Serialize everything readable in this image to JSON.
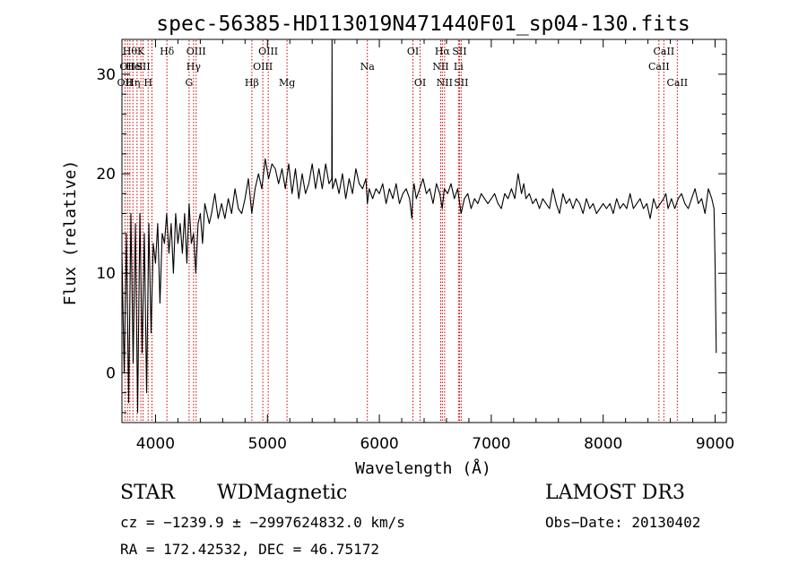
{
  "chart_data": {
    "type": "line",
    "title": "spec-56385-HD113019N471440F01_sp04-130.fits",
    "xlabel": "Wavelength (Å)",
    "ylabel": "Flux (relative)",
    "xlim": [
      3700,
      9100
    ],
    "ylim": [
      -5,
      33.5
    ],
    "xticks": [
      {
        "value": 4000,
        "label": "4000"
      },
      {
        "value": 5000,
        "label": "5000"
      },
      {
        "value": 6000,
        "label": "6000"
      },
      {
        "value": 7000,
        "label": "7000"
      },
      {
        "value": 8000,
        "label": "8000"
      },
      {
        "value": 9000,
        "label": "9000"
      }
    ],
    "yticks": [
      {
        "value": 0,
        "label": "0"
      },
      {
        "value": 10,
        "label": "10"
      },
      {
        "value": 20,
        "label": "20"
      },
      {
        "value": 30,
        "label": "30"
      }
    ],
    "series": [
      {
        "name": "flux",
        "color": "#000000",
        "x": [
          3700,
          3720,
          3740,
          3760,
          3780,
          3800,
          3820,
          3840,
          3860,
          3880,
          3900,
          3920,
          3940,
          3960,
          3980,
          4000,
          4020,
          4040,
          4060,
          4080,
          4100,
          4120,
          4140,
          4160,
          4180,
          4200,
          4220,
          4240,
          4260,
          4280,
          4300,
          4320,
          4340,
          4360,
          4380,
          4400,
          4420,
          4440,
          4460,
          4480,
          4500,
          4530,
          4560,
          4590,
          4620,
          4650,
          4680,
          4710,
          4740,
          4770,
          4800,
          4830,
          4860,
          4890,
          4920,
          4950,
          4980,
          5010,
          5040,
          5070,
          5100,
          5130,
          5160,
          5190,
          5220,
          5250,
          5280,
          5310,
          5340,
          5370,
          5400,
          5430,
          5460,
          5490,
          5520,
          5550,
          5575,
          5577,
          5579,
          5582,
          5610,
          5640,
          5670,
          5700,
          5730,
          5760,
          5790,
          5820,
          5850,
          5880,
          5893,
          5910,
          5940,
          5970,
          6000,
          6030,
          6060,
          6090,
          6120,
          6150,
          6180,
          6210,
          6240,
          6270,
          6290,
          6300,
          6310,
          6330,
          6360,
          6390,
          6420,
          6450,
          6480,
          6510,
          6540,
          6562,
          6580,
          6610,
          6640,
          6670,
          6700,
          6730,
          6760,
          6790,
          6820,
          6850,
          6880,
          6910,
          6940,
          6970,
          7000,
          7030,
          7060,
          7090,
          7120,
          7150,
          7180,
          7210,
          7240,
          7270,
          7290,
          7310,
          7340,
          7370,
          7400,
          7430,
          7460,
          7490,
          7520,
          7550,
          7580,
          7610,
          7640,
          7670,
          7700,
          7730,
          7760,
          7790,
          7820,
          7850,
          7880,
          7910,
          7940,
          7970,
          8000,
          8030,
          8060,
          8090,
          8120,
          8150,
          8180,
          8210,
          8240,
          8270,
          8300,
          8330,
          8360,
          8390,
          8420,
          8450,
          8480,
          8510,
          8540,
          8560,
          8580,
          8610,
          8640,
          8670,
          8700,
          8730,
          8760,
          8790,
          8820,
          8850,
          8880,
          8910,
          8940,
          8970,
          8990,
          9000,
          9010
        ],
        "y": [
          12,
          0,
          14,
          -3,
          16,
          1,
          15,
          -4,
          16,
          2,
          14,
          -2,
          15,
          4,
          13,
          11,
          15,
          7,
          14,
          13,
          16,
          12,
          15,
          10,
          16,
          13,
          15,
          12,
          16,
          11,
          17,
          13,
          14,
          10,
          15,
          16,
          13,
          17,
          16,
          15,
          16,
          18,
          15.5,
          17,
          15.5,
          17.5,
          16,
          18.5,
          16.5,
          16,
          17.5,
          19.5,
          16,
          18.5,
          20,
          18.5,
          21.5,
          19.5,
          21,
          20.5,
          19,
          20.5,
          18.5,
          21,
          18,
          20.5,
          17.5,
          20,
          18,
          19,
          21,
          18.5,
          20.5,
          18.5,
          21,
          19,
          19.5,
          34,
          20,
          18.5,
          19.5,
          18,
          20,
          17.5,
          19.5,
          18,
          20.5,
          19,
          18.5,
          19.5,
          17,
          18.5,
          17.5,
          18.5,
          18,
          19,
          17,
          18.5,
          17.5,
          19,
          17,
          18,
          18.5,
          17.5,
          15.5,
          18,
          19,
          17.5,
          18.5,
          19.5,
          18,
          18.5,
          17,
          19,
          18,
          16.5,
          18.5,
          18,
          19,
          17.5,
          18.5,
          16,
          17.5,
          18,
          16.5,
          17.5,
          17,
          18,
          17.5,
          17,
          17.5,
          18,
          17,
          16.5,
          18,
          17.5,
          18.5,
          17.5,
          20,
          18,
          19,
          17.5,
          18,
          17,
          17.5,
          16.5,
          17.5,
          17,
          16.5,
          18.5,
          17,
          16,
          18,
          17,
          17.5,
          16.5,
          17.5,
          17,
          16,
          17.5,
          16.5,
          17,
          16,
          16.5,
          17,
          16.5,
          17,
          16,
          17.5,
          16.5,
          17,
          16.5,
          18,
          16.5,
          17,
          17.5,
          16.5,
          17,
          15.5,
          17.5,
          16.5,
          17,
          17.5,
          18,
          16.5,
          17.5,
          16.5,
          17.5,
          18,
          17,
          16.5,
          17.5,
          18.5,
          17,
          17.5,
          16,
          18.5,
          17.5,
          16.5,
          11,
          2
        ]
      }
    ],
    "spectral_lines": [
      {
        "wavelength": 3727,
        "labels": [
          {
            "text": "OII",
            "row": 3
          }
        ]
      },
      {
        "wavelength": 3750,
        "labels": [
          {
            "text": "OII",
            "row": 2
          }
        ]
      },
      {
        "wavelength": 3771,
        "labels": [
          {
            "text": "Hθ",
            "row": 1
          }
        ]
      },
      {
        "wavelength": 3798,
        "labels": [
          {
            "text": "He",
            "row": 2
          },
          {
            "text": "Hη",
            "row": 3
          }
        ]
      },
      {
        "wavelength": 3835,
        "labels": []
      },
      {
        "wavelength": 3869,
        "labels": [
          {
            "text": "K",
            "row": 1
          },
          {
            "text": "I",
            "row": 2
          }
        ]
      },
      {
        "wavelength": 3889,
        "labels": [
          {
            "text": "SII",
            "row": 2
          }
        ]
      },
      {
        "wavelength": 3934,
        "labels": [
          {
            "text": "H",
            "row": 3
          }
        ]
      },
      {
        "wavelength": 3968,
        "labels": []
      },
      {
        "wavelength": 4102,
        "labels": [
          {
            "text": "Hδ",
            "row": 1
          }
        ]
      },
      {
        "wavelength": 4300,
        "labels": [
          {
            "text": "G",
            "row": 3
          }
        ]
      },
      {
        "wavelength": 4340,
        "labels": [
          {
            "text": "Hγ",
            "row": 2
          }
        ]
      },
      {
        "wavelength": 4363,
        "labels": [
          {
            "text": "OIII",
            "row": 1
          }
        ]
      },
      {
        "wavelength": 4861,
        "labels": [
          {
            "text": "Hβ",
            "row": 3
          }
        ]
      },
      {
        "wavelength": 4959,
        "labels": [
          {
            "text": "OIII",
            "row": 2
          }
        ]
      },
      {
        "wavelength": 5007,
        "labels": [
          {
            "text": "OIII",
            "row": 1
          }
        ]
      },
      {
        "wavelength": 5175,
        "labels": [
          {
            "text": "Mg",
            "row": 3
          }
        ]
      },
      {
        "wavelength": 5893,
        "labels": [
          {
            "text": "Na",
            "row": 2
          }
        ]
      },
      {
        "wavelength": 6300,
        "labels": [
          {
            "text": "OI",
            "row": 1
          }
        ]
      },
      {
        "wavelength": 6364,
        "labels": [
          {
            "text": "OI",
            "row": 3
          }
        ]
      },
      {
        "wavelength": 6548,
        "labels": [
          {
            "text": "NII",
            "row": 2
          }
        ]
      },
      {
        "wavelength": 6563,
        "labels": [
          {
            "text": "Hα",
            "row": 1
          }
        ]
      },
      {
        "wavelength": 6583,
        "labels": [
          {
            "text": "NII",
            "row": 3
          }
        ]
      },
      {
        "wavelength": 6707,
        "labels": [
          {
            "text": "Li",
            "row": 2
          }
        ]
      },
      {
        "wavelength": 6716,
        "labels": [
          {
            "text": "SII",
            "row": 1
          }
        ]
      },
      {
        "wavelength": 6731,
        "labels": [
          {
            "text": "SII",
            "row": 3
          }
        ]
      },
      {
        "wavelength": 8498,
        "labels": [
          {
            "text": "CaII",
            "row": 2
          }
        ]
      },
      {
        "wavelength": 8542,
        "labels": [
          {
            "text": "CaII",
            "row": 1
          }
        ]
      },
      {
        "wavelength": 8662,
        "labels": [
          {
            "text": "CaII",
            "row": 3
          }
        ]
      }
    ],
    "line_color": "#cc0000"
  },
  "info": {
    "class": "STAR",
    "subclass": "WDMagnetic",
    "survey": "LAMOST DR3",
    "cz": "cz = −1239.9 ± −2997624832.0 km/s",
    "obs_date": "Obs−Date: 20130402",
    "radec": "RA = 172.42532, DEC =  46.75172"
  }
}
